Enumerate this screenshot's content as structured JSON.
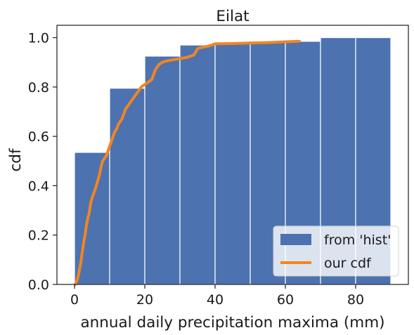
{
  "chart_data": {
    "type": "bar",
    "title": "Eilat",
    "xlabel": "annual daily precipitation maxima (mm)",
    "ylabel": "cdf",
    "xlim": [
      -5,
      95
    ],
    "ylim": [
      0,
      1.05
    ],
    "xticks": [
      0,
      20,
      40,
      60,
      80
    ],
    "yticks": [
      "0.0",
      "0.2",
      "0.4",
      "0.6",
      "0.8",
      "1.0"
    ],
    "grid": false,
    "legend_position": "lower-right",
    "histogram": {
      "name": "from 'hist'",
      "color": "#4c72b0",
      "bin_edges": [
        0,
        10,
        20,
        30,
        40,
        50,
        60,
        70,
        80,
        90
      ],
      "values": [
        0.535,
        0.795,
        0.925,
        0.97,
        0.98,
        0.985,
        0.985,
        1.0,
        1.0
      ]
    },
    "series": [
      {
        "name": "our cdf",
        "color": "#f28522",
        "x": [
          0.2,
          0.8,
          1.3,
          1.8,
          2.2,
          2.6,
          3.0,
          3.4,
          3.8,
          4.2,
          4.6,
          5.0,
          5.5,
          6.0,
          6.4,
          6.8,
          7.2,
          7.6,
          8.0,
          8.5,
          9.0,
          9.5,
          10.0,
          10.5,
          11.0,
          11.5,
          12.0,
          12.5,
          13.0,
          13.5,
          14.0,
          14.5,
          15.0,
          15.5,
          16.0,
          16.5,
          17.0,
          17.5,
          18.0,
          19.0,
          20.0,
          21.0,
          22.0,
          23.0,
          24.0,
          25.0,
          26.0,
          28.0,
          30.0,
          32.0,
          34.0,
          35.0,
          36.0,
          38.0,
          40.0,
          45.0,
          50.0,
          55.0,
          60.0,
          64.0
        ],
        "y": [
          0.0,
          0.02,
          0.05,
          0.09,
          0.13,
          0.17,
          0.2,
          0.24,
          0.27,
          0.29,
          0.33,
          0.35,
          0.37,
          0.39,
          0.41,
          0.43,
          0.45,
          0.48,
          0.5,
          0.51,
          0.52,
          0.54,
          0.56,
          0.58,
          0.6,
          0.62,
          0.63,
          0.65,
          0.66,
          0.67,
          0.69,
          0.71,
          0.72,
          0.73,
          0.74,
          0.75,
          0.76,
          0.77,
          0.78,
          0.8,
          0.81,
          0.82,
          0.83,
          0.87,
          0.89,
          0.9,
          0.905,
          0.91,
          0.915,
          0.92,
          0.93,
          0.955,
          0.96,
          0.965,
          0.975,
          0.976,
          0.978,
          0.98,
          0.983,
          0.985
        ]
      }
    ]
  }
}
